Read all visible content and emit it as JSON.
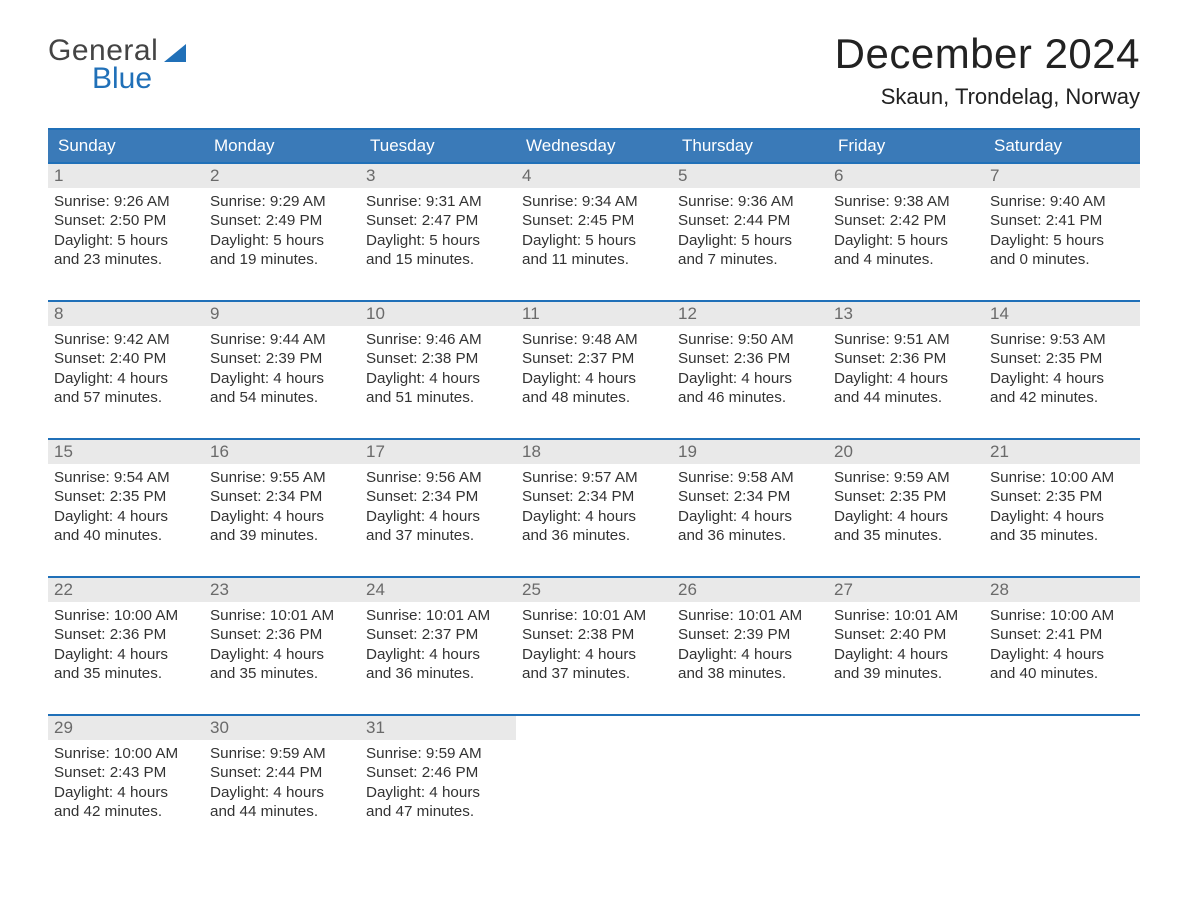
{
  "brand": {
    "general": "General",
    "blue": "Blue",
    "accent_color": "#2070b8"
  },
  "title": "December 2024",
  "location": "Skaun, Trondelag, Norway",
  "colors": {
    "header_bg": "#3a7ab8",
    "header_text": "#ffffff",
    "week_border": "#2070b8",
    "daynum_bg": "#e9e9e9",
    "daynum_text": "#6a6a6a",
    "body_text": "#333333",
    "background": "#ffffff"
  },
  "typography": {
    "title_fontsize": 42,
    "location_fontsize": 22,
    "dayhead_fontsize": 17,
    "cell_fontsize": 15
  },
  "dayheads": [
    "Sunday",
    "Monday",
    "Tuesday",
    "Wednesday",
    "Thursday",
    "Friday",
    "Saturday"
  ],
  "weeks": [
    [
      {
        "n": "1",
        "sunrise": "9:26 AM",
        "sunset": "2:50 PM",
        "dl1": "5 hours",
        "dl2": "and 23 minutes."
      },
      {
        "n": "2",
        "sunrise": "9:29 AM",
        "sunset": "2:49 PM",
        "dl1": "5 hours",
        "dl2": "and 19 minutes."
      },
      {
        "n": "3",
        "sunrise": "9:31 AM",
        "sunset": "2:47 PM",
        "dl1": "5 hours",
        "dl2": "and 15 minutes."
      },
      {
        "n": "4",
        "sunrise": "9:34 AM",
        "sunset": "2:45 PM",
        "dl1": "5 hours",
        "dl2": "and 11 minutes."
      },
      {
        "n": "5",
        "sunrise": "9:36 AM",
        "sunset": "2:44 PM",
        "dl1": "5 hours",
        "dl2": "and 7 minutes."
      },
      {
        "n": "6",
        "sunrise": "9:38 AM",
        "sunset": "2:42 PM",
        "dl1": "5 hours",
        "dl2": "and 4 minutes."
      },
      {
        "n": "7",
        "sunrise": "9:40 AM",
        "sunset": "2:41 PM",
        "dl1": "5 hours",
        "dl2": "and 0 minutes."
      }
    ],
    [
      {
        "n": "8",
        "sunrise": "9:42 AM",
        "sunset": "2:40 PM",
        "dl1": "4 hours",
        "dl2": "and 57 minutes."
      },
      {
        "n": "9",
        "sunrise": "9:44 AM",
        "sunset": "2:39 PM",
        "dl1": "4 hours",
        "dl2": "and 54 minutes."
      },
      {
        "n": "10",
        "sunrise": "9:46 AM",
        "sunset": "2:38 PM",
        "dl1": "4 hours",
        "dl2": "and 51 minutes."
      },
      {
        "n": "11",
        "sunrise": "9:48 AM",
        "sunset": "2:37 PM",
        "dl1": "4 hours",
        "dl2": "and 48 minutes."
      },
      {
        "n": "12",
        "sunrise": "9:50 AM",
        "sunset": "2:36 PM",
        "dl1": "4 hours",
        "dl2": "and 46 minutes."
      },
      {
        "n": "13",
        "sunrise": "9:51 AM",
        "sunset": "2:36 PM",
        "dl1": "4 hours",
        "dl2": "and 44 minutes."
      },
      {
        "n": "14",
        "sunrise": "9:53 AM",
        "sunset": "2:35 PM",
        "dl1": "4 hours",
        "dl2": "and 42 minutes."
      }
    ],
    [
      {
        "n": "15",
        "sunrise": "9:54 AM",
        "sunset": "2:35 PM",
        "dl1": "4 hours",
        "dl2": "and 40 minutes."
      },
      {
        "n": "16",
        "sunrise": "9:55 AM",
        "sunset": "2:34 PM",
        "dl1": "4 hours",
        "dl2": "and 39 minutes."
      },
      {
        "n": "17",
        "sunrise": "9:56 AM",
        "sunset": "2:34 PM",
        "dl1": "4 hours",
        "dl2": "and 37 minutes."
      },
      {
        "n": "18",
        "sunrise": "9:57 AM",
        "sunset": "2:34 PM",
        "dl1": "4 hours",
        "dl2": "and 36 minutes."
      },
      {
        "n": "19",
        "sunrise": "9:58 AM",
        "sunset": "2:34 PM",
        "dl1": "4 hours",
        "dl2": "and 36 minutes."
      },
      {
        "n": "20",
        "sunrise": "9:59 AM",
        "sunset": "2:35 PM",
        "dl1": "4 hours",
        "dl2": "and 35 minutes."
      },
      {
        "n": "21",
        "sunrise": "10:00 AM",
        "sunset": "2:35 PM",
        "dl1": "4 hours",
        "dl2": "and 35 minutes."
      }
    ],
    [
      {
        "n": "22",
        "sunrise": "10:00 AM",
        "sunset": "2:36 PM",
        "dl1": "4 hours",
        "dl2": "and 35 minutes."
      },
      {
        "n": "23",
        "sunrise": "10:01 AM",
        "sunset": "2:36 PM",
        "dl1": "4 hours",
        "dl2": "and 35 minutes."
      },
      {
        "n": "24",
        "sunrise": "10:01 AM",
        "sunset": "2:37 PM",
        "dl1": "4 hours",
        "dl2": "and 36 minutes."
      },
      {
        "n": "25",
        "sunrise": "10:01 AM",
        "sunset": "2:38 PM",
        "dl1": "4 hours",
        "dl2": "and 37 minutes."
      },
      {
        "n": "26",
        "sunrise": "10:01 AM",
        "sunset": "2:39 PM",
        "dl1": "4 hours",
        "dl2": "and 38 minutes."
      },
      {
        "n": "27",
        "sunrise": "10:01 AM",
        "sunset": "2:40 PM",
        "dl1": "4 hours",
        "dl2": "and 39 minutes."
      },
      {
        "n": "28",
        "sunrise": "10:00 AM",
        "sunset": "2:41 PM",
        "dl1": "4 hours",
        "dl2": "and 40 minutes."
      }
    ],
    [
      {
        "n": "29",
        "sunrise": "10:00 AM",
        "sunset": "2:43 PM",
        "dl1": "4 hours",
        "dl2": "and 42 minutes."
      },
      {
        "n": "30",
        "sunrise": "9:59 AM",
        "sunset": "2:44 PM",
        "dl1": "4 hours",
        "dl2": "and 44 minutes."
      },
      {
        "n": "31",
        "sunrise": "9:59 AM",
        "sunset": "2:46 PM",
        "dl1": "4 hours",
        "dl2": "and 47 minutes."
      },
      null,
      null,
      null,
      null
    ]
  ],
  "labels": {
    "sunrise": "Sunrise:",
    "sunset": "Sunset:",
    "daylight": "Daylight:"
  }
}
